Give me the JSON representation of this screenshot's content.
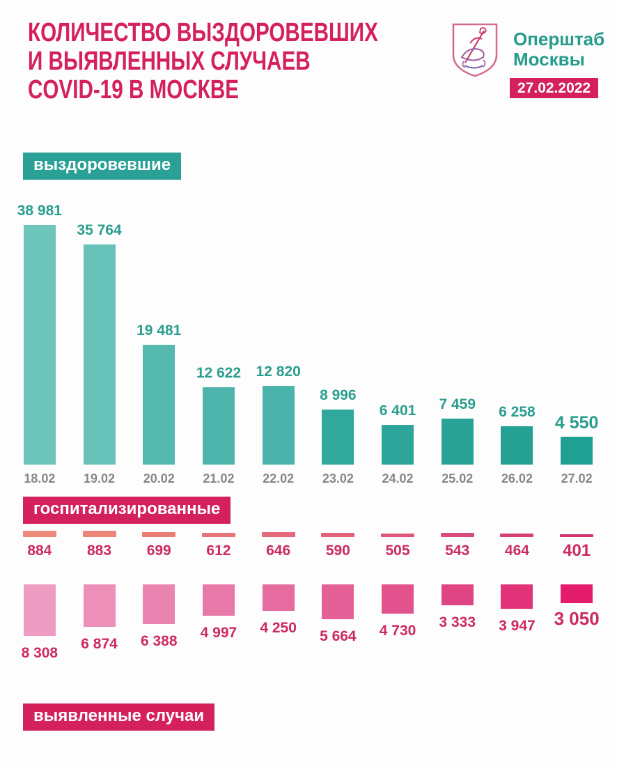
{
  "header": {
    "title": "КОЛИЧЕСТВО ВЫЗДОРОВЕВШИХ\nИ ВЫЯВЛЕННЫХ СЛУЧАЕВ\nCOVID-19 В МОСКВЕ",
    "org_name": "Оперштаб\nМосквы",
    "date_badge": "27.02.2022",
    "logo_icon": "moscow-coat-of-arms"
  },
  "colors": {
    "crimson_accent": "#d4215c",
    "teal_accent": "#2aa096",
    "value_text_teal": "#2b9e8f",
    "value_text_crimson": "#cc2a62",
    "date_text_gray": "#87878b"
  },
  "chart_data": [
    {
      "type": "bar",
      "title": "выздоровевшие",
      "categories": [
        "18.02",
        "19.02",
        "20.02",
        "21.02",
        "22.02",
        "23.02",
        "24.02",
        "25.02",
        "26.02",
        "27.02"
      ],
      "values": [
        38981,
        35764,
        19481,
        12622,
        12820,
        8996,
        6401,
        7459,
        6258,
        4550
      ],
      "labels": [
        "38 981",
        "35 764",
        "19 481",
        "12 622",
        "12 820",
        "8 996",
        "6 401",
        "7 459",
        "6 258",
        "4 550"
      ],
      "bar_colors": [
        "#6ec5bc",
        "#67c2b9",
        "#55b9b0",
        "#4eb5ac",
        "#4ab3aa",
        "#30a89b",
        "#2da59a",
        "#29a396",
        "#25a193",
        "#20a092"
      ],
      "ylim": [
        0,
        40000
      ],
      "legend_position": "above",
      "grid": false
    },
    {
      "type": "bar",
      "title": "госпитализированные",
      "categories": [
        "18.02",
        "19.02",
        "20.02",
        "21.02",
        "22.02",
        "23.02",
        "24.02",
        "25.02",
        "26.02",
        "27.02"
      ],
      "values": [
        884,
        883,
        699,
        612,
        646,
        590,
        505,
        543,
        464,
        401
      ],
      "labels": [
        "884",
        "883",
        "699",
        "612",
        "646",
        "590",
        "505",
        "543",
        "464",
        "401"
      ],
      "bar_colors": [
        "#ed8a7c",
        "#ec8678",
        "#ea7c76",
        "#e77377",
        "#e46b79",
        "#e1617b",
        "#dd567a",
        "#d94b78",
        "#d54075",
        "#d13571"
      ],
      "ylim": [
        0,
        900
      ],
      "legend_position": "above",
      "grid": false
    },
    {
      "type": "bar",
      "title": "выявленные случаи",
      "categories": [
        "18.02",
        "19.02",
        "20.02",
        "21.02",
        "22.02",
        "23.02",
        "24.02",
        "25.02",
        "26.02",
        "27.02"
      ],
      "values": [
        8308,
        6874,
        6388,
        4997,
        4250,
        5664,
        4730,
        3333,
        3947,
        3050
      ],
      "labels": [
        "8 308",
        "6 874",
        "6 388",
        "4 997",
        "4 250",
        "5 664",
        "4 730",
        "3 333",
        "3 947",
        "3 050"
      ],
      "bar_colors": [
        "#ee9cc1",
        "#ec90b8",
        "#ea84b0",
        "#e878a7",
        "#e66c9f",
        "#e46096",
        "#e2538d",
        "#e04583",
        "#e23379",
        "#e31c6c"
      ],
      "ylim": [
        0,
        8500
      ],
      "legend_position": "below",
      "grid": false
    }
  ]
}
